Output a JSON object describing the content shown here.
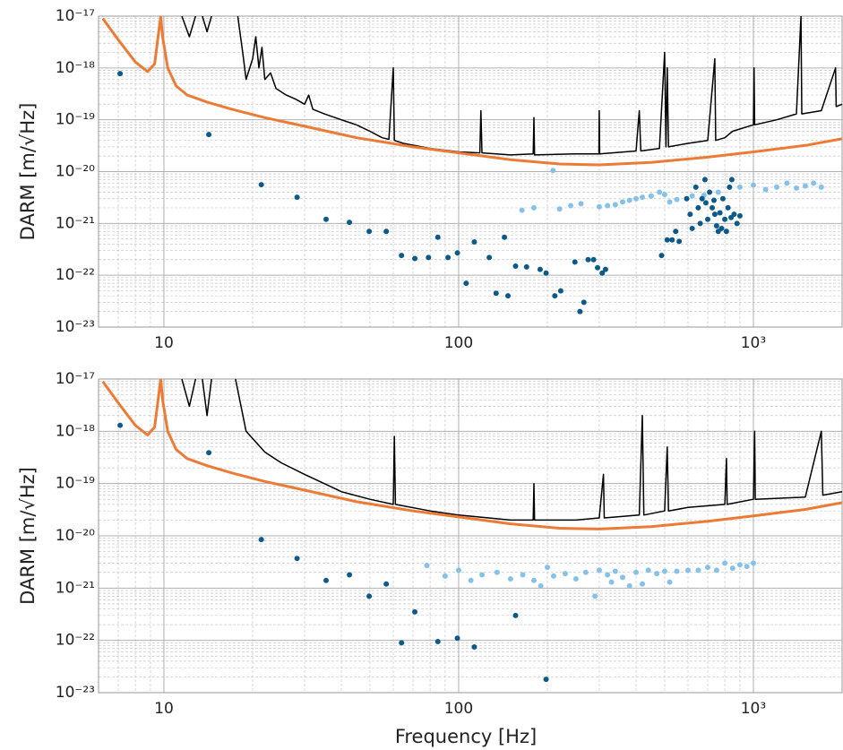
{
  "chart_data": [
    {
      "type": "line",
      "xscale": "log",
      "yscale": "log",
      "grid": true,
      "ylabel": "DARM [m/√Hz]",
      "xlim": [
        6,
        2000
      ],
      "ylim": [
        1e-23,
        1e-17
      ],
      "xticks": [
        10,
        100,
        {
          "value": 1000,
          "label": "10³"
        }
      ],
      "yticks": [
        {
          "value": 1e-23,
          "label": "10⁻²³"
        },
        {
          "value": 1e-22,
          "label": "10⁻²²"
        },
        {
          "value": 1e-21,
          "label": "10⁻²¹"
        },
        {
          "value": 1e-20,
          "label": "10⁻²⁰"
        },
        {
          "value": 1e-19,
          "label": "10⁻¹⁹"
        },
        {
          "value": 1e-18,
          "label": "10⁻¹⁸"
        },
        {
          "value": 1e-17,
          "label": "10⁻¹⁷"
        }
      ],
      "series": [
        {
          "type": "line",
          "color": "#000000",
          "x": [
            11.5,
            12.2,
            12.8,
            13.2,
            13.5,
            14,
            14.5,
            16,
            17.8,
            18.5,
            19,
            20,
            20.5,
            21,
            21.5,
            22,
            23,
            24,
            26,
            28,
            30,
            31,
            32,
            35,
            40,
            45,
            50,
            55,
            58,
            60,
            60.5,
            65,
            80,
            100,
            118,
            119,
            120,
            150,
            179,
            180,
            181,
            250,
            299,
            300,
            301,
            400,
            410,
            415,
            480,
            500,
            505,
            510,
            515,
            600,
            700,
            740,
            745,
            800,
            850,
            1000,
            1005,
            1010,
            1200,
            1400,
            1450,
            1460,
            1700,
            1900,
            1910,
            2000
          ],
          "values": [
            1e-17,
            4e-18,
            1e-17,
            null,
            1e-17,
            5e-18,
            1e-17,
            null,
            1e-17,
            2e-18,
            6e-19,
            1.5e-18,
            4e-18,
            1e-18,
            2.5e-18,
            6e-19,
            8e-19,
            4e-19,
            3e-19,
            2.5e-19,
            2e-19,
            3e-19,
            1.6e-19,
            1.3e-19,
            1e-19,
            8e-20,
            6e-20,
            4.5e-20,
            4.2e-20,
            1e-18,
            4e-20,
            3.5e-20,
            2.8e-20,
            2.4e-20,
            2.3e-20,
            1.5e-19,
            2.3e-20,
            2.1e-20,
            2.2e-20,
            1.1e-19,
            2.1e-20,
            2.2e-20,
            2.2e-20,
            1.5e-19,
            2.2e-20,
            2.5e-20,
            1.5e-19,
            2.5e-20,
            2.8e-20,
            2e-18,
            3e-20,
            1e-18,
            3e-20,
            3.5e-20,
            4e-20,
            1.5e-18,
            4e-20,
            4.5e-20,
            6e-20,
            8e-20,
            1e-18,
            8e-20,
            1e-19,
            1.3e-19,
            1e-17,
            1.3e-19,
            1.5e-19,
            1e-18,
            1.8e-19,
            2e-19
          ]
        },
        {
          "type": "line",
          "color": "#ec7b35",
          "x": [
            6.2,
            7,
            8,
            8.8,
            9.3,
            9.6,
            9.75,
            9.9,
            10.3,
            11,
            12,
            14,
            17,
            22,
            30,
            45,
            70,
            100,
            150,
            220,
            300,
            450,
            700,
            1000,
            1500,
            2000
          ],
          "values": [
            9e-18,
            3.5e-18,
            1.3e-18,
            8.5e-19,
            1.2e-18,
            5e-18,
            1e-17,
            4e-18,
            1e-18,
            4.5e-19,
            3e-19,
            2.2e-19,
            1.6e-19,
            1.1e-19,
            7.5e-20,
            4.5e-20,
            3e-20,
            2.3e-20,
            1.7e-20,
            1.4e-20,
            1.35e-20,
            1.5e-20,
            1.9e-20,
            2.4e-20,
            3.2e-20,
            4.3e-20
          ]
        },
        {
          "type": "scatter",
          "color": "#85c1e9",
          "x": [
            164,
            180,
            209,
            220,
            240,
            260,
            300,
            320,
            340,
            360,
            380,
            400,
            420,
            450,
            480,
            500,
            520,
            550,
            620,
            680,
            760,
            900,
            1000,
            1100,
            1200,
            1300,
            1400,
            1500,
            1600,
            1700
          ],
          "values": [
            1.8e-21,
            2e-21,
            1.05e-20,
            1.9e-21,
            2.2e-21,
            2.4e-21,
            2.1e-21,
            2.2e-21,
            2.3e-21,
            2.6e-21,
            2.8e-21,
            3e-21,
            3.2e-21,
            3.4e-21,
            4e-21,
            3.6e-21,
            2.6e-21,
            2.9e-21,
            3.4e-21,
            3.5e-21,
            4e-21,
            5e-21,
            5.5e-21,
            4.5e-21,
            5e-21,
            6e-21,
            4.8e-21,
            5.3e-21,
            6e-21,
            5e-21
          ]
        },
        {
          "type": "scatter",
          "color": "#0b5a8a",
          "x": [
            7.1,
            14.2,
            21.4,
            28.3,
            35.5,
            42.6,
            49.7,
            56.8,
            64,
            71,
            79,
            85,
            92,
            99,
            106,
            113,
            127,
            134,
            143,
            147,
            156,
            170,
            189,
            198,
            212,
            222,
            248,
            258,
            266,
            275,
            287,
            296,
            307,
            315,
            488,
            510,
            530,
            545,
            560,
            594,
            610,
            620,
            638,
            650,
            660,
            670,
            685,
            690,
            700,
            710,
            725,
            735,
            740,
            750,
            760,
            770,
            780,
            788,
            800,
            810,
            820,
            830,
            840,
            845,
            860,
            880,
            900
          ],
          "values": [
            7.8e-19,
            5.2e-20,
            5.6e-21,
            3.2e-21,
            1.2e-21,
            1.05e-21,
            7e-22,
            7e-22,
            2.4e-22,
            2.1e-22,
            2.2e-22,
            5.4e-22,
            2.2e-22,
            2.7e-22,
            7e-23,
            4.4e-22,
            2.2e-22,
            4.5e-23,
            5.4e-22,
            4e-23,
            1.5e-22,
            1.45e-22,
            1.3e-22,
            1.1e-22,
            4e-23,
            5e-23,
            1.8e-22,
            2e-23,
            3e-23,
            2e-22,
            2e-22,
            1.4e-22,
            1.1e-22,
            1.3e-22,
            2.4e-22,
            4.8e-22,
            4.8e-22,
            7e-22,
            4.5e-22,
            3e-21,
            1.5e-21,
            8e-22,
            5e-21,
            2e-21,
            1e-21,
            3e-21,
            7e-21,
            2.5e-21,
            1.2e-21,
            4e-21,
            2e-21,
            2.8e-21,
            1.5e-21,
            9e-22,
            7e-22,
            1.6e-21,
            8e-22,
            3e-21,
            1.2e-21,
            7e-22,
            2e-21,
            5e-21,
            1.3e-21,
            7e-21,
            1.5e-21,
            1e-21,
            1.4e-21
          ]
        }
      ]
    },
    {
      "type": "line",
      "xscale": "log",
      "yscale": "log",
      "grid": true,
      "ylabel": "DARM [m/√Hz]",
      "xlabel": "Frequency [Hz]",
      "xlim": [
        6,
        2000
      ],
      "ylim": [
        1e-23,
        1e-17
      ],
      "xticks": [
        10,
        100,
        {
          "value": 1000,
          "label": "10³"
        }
      ],
      "yticks": [
        {
          "value": 1e-23,
          "label": "10⁻²³"
        },
        {
          "value": 1e-22,
          "label": "10⁻²²"
        },
        {
          "value": 1e-21,
          "label": "10⁻²¹"
        },
        {
          "value": 1e-20,
          "label": "10⁻²⁰"
        },
        {
          "value": 1e-19,
          "label": "10⁻¹⁹"
        },
        {
          "value": 1e-18,
          "label": "10⁻¹⁸"
        },
        {
          "value": 1e-17,
          "label": "10⁻¹⁷"
        }
      ],
      "series": [
        {
          "type": "line",
          "color": "#000000",
          "x": [
            11.5,
            12.2,
            12.8,
            13.2,
            13.5,
            14,
            14.5,
            16,
            17.5,
            19,
            22,
            25,
            30,
            35,
            40,
            50,
            60,
            60.5,
            61,
            80,
            100,
            150,
            179,
            180,
            181,
            250,
            300,
            310,
            312,
            410,
            420,
            425,
            500,
            510,
            515,
            600,
            800,
            810,
            815,
            1000,
            1010,
            1015,
            1500,
            1700,
            1720,
            2000
          ],
          "values": [
            1e-17,
            3e-18,
            1e-17,
            null,
            1e-17,
            2e-18,
            1e-17,
            null,
            1e-17,
            1e-18,
            4e-19,
            2.5e-19,
            1.5e-19,
            1e-19,
            7e-20,
            5e-20,
            4e-20,
            8e-19,
            4e-20,
            3e-20,
            2.5e-20,
            2e-20,
            2e-20,
            1e-19,
            2e-20,
            2e-20,
            2.2e-20,
            1.5e-19,
            2.2e-20,
            2.5e-20,
            2e-18,
            2.5e-20,
            3e-20,
            5e-19,
            3e-20,
            3.5e-20,
            4e-20,
            3e-19,
            4e-20,
            5e-20,
            1e-18,
            5e-20,
            5.5e-20,
            1e-18,
            6e-20,
            7e-20
          ]
        },
        {
          "type": "line",
          "color": "#ec7b35",
          "x": [
            6.2,
            7,
            8,
            8.8,
            9.3,
            9.6,
            9.75,
            9.9,
            10.3,
            11,
            12,
            14,
            17,
            22,
            30,
            45,
            70,
            100,
            150,
            220,
            300,
            450,
            700,
            1000,
            1500,
            2000
          ],
          "values": [
            9e-18,
            3.5e-18,
            1.3e-18,
            8.5e-19,
            1.2e-18,
            5e-18,
            1e-17,
            4e-18,
            1e-18,
            4.5e-19,
            3e-19,
            2.2e-19,
            1.6e-19,
            1.1e-19,
            7.5e-20,
            4.5e-20,
            3e-20,
            2.3e-20,
            1.7e-20,
            1.4e-20,
            1.35e-20,
            1.5e-20,
            1.9e-20,
            2.4e-20,
            3.2e-20,
            4.3e-20
          ]
        },
        {
          "type": "scatter",
          "color": "#85c1e9",
          "x": [
            78,
            90,
            100,
            110,
            120,
            135,
            150,
            165,
            180,
            190,
            200,
            210,
            230,
            250,
            270,
            290,
            300,
            320,
            330,
            340,
            360,
            380,
            400,
            420,
            440,
            470,
            500,
            520,
            550,
            600,
            650,
            700,
            750,
            800,
            850,
            900,
            950,
            1000
          ],
          "values": [
            2.7e-21,
            1.7e-21,
            2.2e-21,
            1.4e-21,
            1.8e-21,
            2e-21,
            1.5e-21,
            1.8e-21,
            1.4e-21,
            1.1e-21,
            2.5e-21,
            1.7e-21,
            1.9e-21,
            1.5e-21,
            2e-21,
            7e-22,
            2.2e-21,
            1.8e-21,
            1.3e-21,
            2.1e-21,
            1.6e-21,
            1.1e-21,
            2e-21,
            1.2e-21,
            2.2e-21,
            1.9e-21,
            2.1e-21,
            1.3e-21,
            2.1e-21,
            2.2e-21,
            2.2e-21,
            2.5e-21,
            2.2e-21,
            3e-21,
            2.4e-21,
            2.8e-21,
            2.6e-21,
            3e-21
          ]
        },
        {
          "type": "scatter",
          "color": "#0b5a8a",
          "x": [
            7.1,
            14.2,
            21.4,
            28.3,
            35.5,
            42.6,
            49.7,
            56.8,
            64,
            71,
            85,
            99,
            113,
            156,
            198
          ],
          "values": [
            1.3e-18,
            3.9e-19,
            8.5e-21,
            3.7e-21,
            1.4e-21,
            1.8e-21,
            7e-22,
            1.2e-21,
            9e-23,
            3.5e-22,
            9.5e-23,
            1.1e-22,
            7.5e-23,
            3e-22,
            1.8e-23
          ]
        }
      ]
    }
  ]
}
